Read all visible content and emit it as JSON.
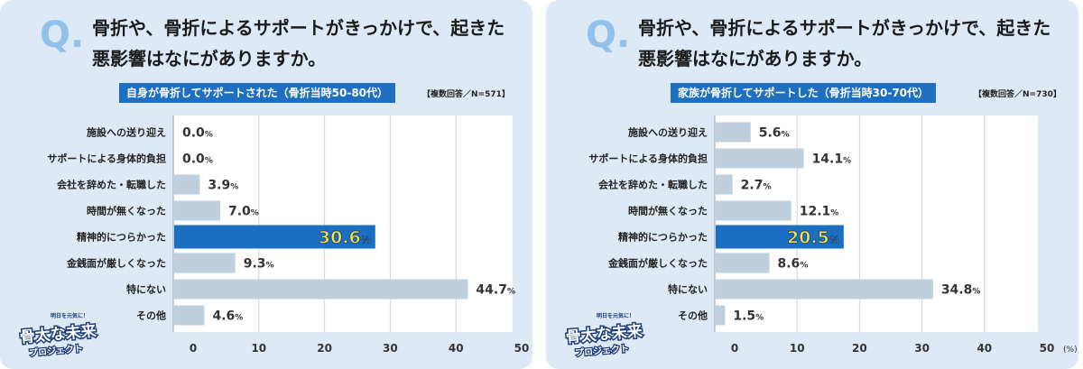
{
  "panels": [
    {
      "question": "骨折や、骨折によるサポートがきっかけで、起きた悪影響はなにがありますか。",
      "q_mark": "Q.",
      "subtitle": "自身が骨折してサポートされた（骨折当時50-80代）",
      "respondents": "【複数回答／N=571】",
      "logo": {
        "top": "明日を元気に！",
        "main": "骨太な未来",
        "sub": "プロジェクト"
      }
    },
    {
      "question": "骨折や、骨折によるサポートがきっかけで、起きた悪影響はなにがありますか。",
      "q_mark": "Q.",
      "subtitle": "家族が骨折してサポートした（骨折当時30-70代）",
      "respondents": "【複数回答／N=730】",
      "logo": {
        "top": "明日を元気に！",
        "main": "骨太な未来",
        "sub": "プロジェクト"
      }
    }
  ],
  "chart_data": [
    {
      "type": "bar",
      "orientation": "horizontal",
      "categories": [
        "施設への送り迎え",
        "サポートによる身体的負担",
        "会社を辞めた・転職した",
        "時間が無くなった",
        "精神的につらかった",
        "金銭面が厳しくなった",
        "特にない",
        "その他"
      ],
      "values": [
        0.0,
        0.0,
        3.9,
        7.0,
        30.6,
        9.3,
        44.7,
        4.6
      ],
      "value_labels": [
        "0.0",
        "0.0",
        "3.9",
        "7.0",
        "30.6",
        "9.3",
        "44.7",
        "4.6"
      ],
      "highlight_index": 4,
      "xlim": [
        0,
        50
      ],
      "xticks": [
        "0",
        "10",
        "20",
        "30",
        "40",
        "50"
      ],
      "unit": "(%)",
      "pct_sign": "%",
      "grid": true,
      "colors": {
        "bar": "#bfcfdc",
        "highlight": "#1a6fc2",
        "highlight_label": "#ffe23a",
        "grid": "#c7d5e3",
        "plot_bg": "#ffffff"
      }
    },
    {
      "type": "bar",
      "orientation": "horizontal",
      "categories": [
        "施設への送り迎え",
        "サポートによる身体的負担",
        "会社を辞めた・転職した",
        "時間が無くなった",
        "精神的につらかった",
        "金銭面が厳しくなった",
        "特にない",
        "その他"
      ],
      "values": [
        5.6,
        14.1,
        2.7,
        12.1,
        20.5,
        8.6,
        34.8,
        1.5
      ],
      "value_labels": [
        "5.6",
        "14.1",
        "2.7",
        "12.1",
        "20.5",
        "8.6",
        "34.8",
        "1.5"
      ],
      "highlight_index": 4,
      "xlim": [
        0,
        50
      ],
      "xticks": [
        "0",
        "10",
        "20",
        "30",
        "40",
        "50"
      ],
      "unit": "(%)",
      "pct_sign": "%",
      "grid": true,
      "colors": {
        "bar": "#bfcfdc",
        "highlight": "#1a6fc2",
        "highlight_label": "#ffe23a",
        "grid": "#c7d5e3",
        "plot_bg": "#ffffff"
      }
    }
  ]
}
